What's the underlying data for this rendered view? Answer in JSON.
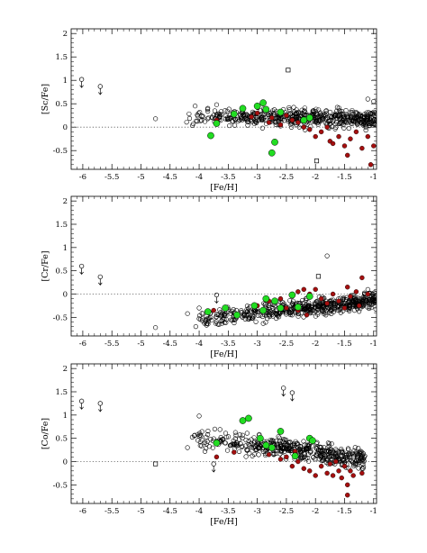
{
  "colors": {
    "open": "#000000",
    "red": "#a50f0f",
    "green": "#22dd22",
    "ref": "#555555"
  },
  "chart_data": [
    {
      "type": "scatter",
      "xlabel": "[Fe/H]",
      "ylabel": "[Sc/Fe]",
      "xlim": [
        -6.2,
        -0.95
      ],
      "ylim": [
        -0.9,
        2.1
      ],
      "xticks": [
        -6,
        -5.5,
        -5,
        -4.5,
        -4,
        -3.5,
        -3,
        -2.5,
        -2,
        -1.5,
        -1
      ],
      "xtick_labels": [
        "-6",
        "-5.5",
        "-5",
        "-4.5",
        "-4",
        "-3.5",
        "-3",
        "-2.5",
        "-2",
        "-1.5",
        "-1"
      ],
      "yticks": [
        -0.5,
        0,
        0.5,
        1,
        1.5,
        2
      ],
      "ytick_labels": [
        "-0.5",
        "0",
        "0.5",
        "1",
        "1.5",
        "2"
      ],
      "reference_line": 0,
      "cloud": {
        "seed": 11,
        "n": 520,
        "xmin": -4.25,
        "xmax": -0.95,
        "y0": 0.22,
        "slope": -0.03,
        "spread": 0.13
      },
      "upper_limits": [
        {
          "x": -6.02,
          "y": 1.02
        },
        {
          "x": -5.7,
          "y": 0.87
        }
      ],
      "squares": [
        {
          "x": -2.47,
          "y": 1.22
        },
        {
          "x": -1.98,
          "y": -0.72
        }
      ],
      "extra_open": [
        {
          "x": -4.75,
          "y": 0.18
        },
        {
          "x": -4.1,
          "y": 0.07
        },
        {
          "x": -3.9,
          "y": 0.12
        },
        {
          "x": -1.0,
          "y": 0.55
        },
        {
          "x": -1.1,
          "y": 0.6
        }
      ],
      "red_points": [
        {
          "x": -3.7,
          "y": 0.15
        },
        {
          "x": -3.1,
          "y": 0.22
        },
        {
          "x": -3.0,
          "y": 0.3
        },
        {
          "x": -2.8,
          "y": 0.1
        },
        {
          "x": -2.75,
          "y": 0.2
        },
        {
          "x": -2.6,
          "y": 0.05
        },
        {
          "x": -2.5,
          "y": 0.25
        },
        {
          "x": -2.4,
          "y": 0.15
        },
        {
          "x": -2.3,
          "y": 0.1
        },
        {
          "x": -2.2,
          "y": 0.0
        },
        {
          "x": -2.1,
          "y": -0.05
        },
        {
          "x": -2.0,
          "y": -0.2
        },
        {
          "x": -1.9,
          "y": -0.1
        },
        {
          "x": -1.8,
          "y": 0.0
        },
        {
          "x": -1.75,
          "y": -0.3
        },
        {
          "x": -1.7,
          "y": -0.35
        },
        {
          "x": -1.6,
          "y": -0.2
        },
        {
          "x": -1.5,
          "y": -0.4
        },
        {
          "x": -1.4,
          "y": -0.25
        },
        {
          "x": -1.3,
          "y": -0.1
        },
        {
          "x": -1.2,
          "y": -0.45
        },
        {
          "x": -1.1,
          "y": -0.2
        },
        {
          "x": -1.0,
          "y": -0.4
        },
        {
          "x": -1.05,
          "y": -0.8
        },
        {
          "x": -1.45,
          "y": -0.6
        }
      ],
      "green_points": [
        {
          "x": -3.8,
          "y": -0.18
        },
        {
          "x": -3.7,
          "y": 0.08
        },
        {
          "x": -3.4,
          "y": 0.28
        },
        {
          "x": -3.25,
          "y": 0.4
        },
        {
          "x": -3.0,
          "y": 0.45
        },
        {
          "x": -2.9,
          "y": 0.52
        },
        {
          "x": -2.7,
          "y": -0.32
        },
        {
          "x": -2.85,
          "y": 0.38
        },
        {
          "x": -2.6,
          "y": 0.32
        },
        {
          "x": -2.2,
          "y": 0.15
        },
        {
          "x": -2.1,
          "y": 0.2
        },
        {
          "x": -2.75,
          "y": -0.55
        }
      ]
    },
    {
      "type": "scatter",
      "xlabel": "[Fe/H]",
      "ylabel": "[Cr/Fe]",
      "xlim": [
        -6.2,
        -0.95
      ],
      "ylim": [
        -0.9,
        2.1
      ],
      "xticks": [
        -6,
        -5.5,
        -5,
        -4.5,
        -4,
        -3.5,
        -3,
        -2.5,
        -2,
        -1.5,
        -1
      ],
      "xtick_labels": [
        "-6",
        "-5.5",
        "-5",
        "-4.5",
        "-4",
        "-3.5",
        "-3",
        "-2.5",
        "-2",
        "-1.5",
        "-1"
      ],
      "yticks": [
        -0.5,
        0,
        0.5,
        1,
        1.5,
        2
      ],
      "ytick_labels": [
        "-0.5",
        "0",
        "0.5",
        "1",
        "1.5",
        "2"
      ],
      "reference_line": 0,
      "cloud": {
        "seed": 23,
        "n": 560,
        "xmin": -4.1,
        "xmax": -0.95,
        "y0": -0.38,
        "slope": 0.14,
        "spread": 0.12
      },
      "upper_limits": [
        {
          "x": -6.02,
          "y": 0.6
        },
        {
          "x": -5.7,
          "y": 0.37
        },
        {
          "x": -3.7,
          "y": -0.02
        }
      ],
      "squares": [
        {
          "x": -1.95,
          "y": 0.38
        }
      ],
      "extra_open": [
        {
          "x": -4.75,
          "y": -0.72
        },
        {
          "x": -4.2,
          "y": -0.42
        },
        {
          "x": -4.0,
          "y": -0.3
        },
        {
          "x": -1.8,
          "y": 0.82
        },
        {
          "x": -1.1,
          "y": 0.1
        }
      ],
      "red_points": [
        {
          "x": -3.75,
          "y": -0.35
        },
        {
          "x": -3.0,
          "y": -0.25
        },
        {
          "x": -2.8,
          "y": -0.15
        },
        {
          "x": -2.6,
          "y": -0.1
        },
        {
          "x": -2.5,
          "y": -0.3
        },
        {
          "x": -2.4,
          "y": -0.05
        },
        {
          "x": -2.3,
          "y": 0.05
        },
        {
          "x": -2.2,
          "y": 0.1
        },
        {
          "x": -2.1,
          "y": 0.0
        },
        {
          "x": -2.0,
          "y": 0.1
        },
        {
          "x": -1.9,
          "y": -0.1
        },
        {
          "x": -1.8,
          "y": -0.2
        },
        {
          "x": -1.7,
          "y": 0.0
        },
        {
          "x": -1.6,
          "y": -0.15
        },
        {
          "x": -1.5,
          "y": -0.3
        },
        {
          "x": -1.45,
          "y": 0.15
        },
        {
          "x": -1.4,
          "y": -0.05
        },
        {
          "x": -1.3,
          "y": 0.05
        },
        {
          "x": -1.25,
          "y": -0.25
        },
        {
          "x": -1.2,
          "y": 0.35
        },
        {
          "x": -1.1,
          "y": 0.0
        },
        {
          "x": -2.15,
          "y": -0.45
        },
        {
          "x": -2.3,
          "y": -0.35
        }
      ],
      "green_points": [
        {
          "x": -3.85,
          "y": -0.38
        },
        {
          "x": -3.55,
          "y": -0.3
        },
        {
          "x": -3.35,
          "y": -0.45
        },
        {
          "x": -3.05,
          "y": -0.25
        },
        {
          "x": -2.9,
          "y": -0.35
        },
        {
          "x": -2.7,
          "y": -0.15
        },
        {
          "x": -2.6,
          "y": -0.3
        },
        {
          "x": -2.4,
          "y": -0.02
        },
        {
          "x": -2.3,
          "y": -0.28
        },
        {
          "x": -2.1,
          "y": -0.05
        },
        {
          "x": -2.85,
          "y": -0.1
        }
      ]
    },
    {
      "type": "scatter",
      "xlabel": "[Fe/H]",
      "ylabel": "[Co/Fe]",
      "xlim": [
        -6.2,
        -0.95
      ],
      "ylim": [
        -0.9,
        2.1
      ],
      "xticks": [
        -6,
        -5.5,
        -5,
        -4.5,
        -4,
        -3.5,
        -3,
        -2.5,
        -2,
        -1.5,
        -1
      ],
      "xtick_labels": [
        "-6",
        "-5.5",
        "-5",
        "-4.5",
        "-4",
        "-3.5",
        "-3",
        "-2.5",
        "-2",
        "-1.5",
        "-1"
      ],
      "yticks": [
        -0.5,
        0,
        0.5,
        1,
        1.5,
        2
      ],
      "ytick_labels": [
        "-0.5",
        "0",
        "0.5",
        "1",
        "1.5",
        "2"
      ],
      "reference_line": 0,
      "cloud": {
        "seed": 37,
        "n": 470,
        "xmin": -4.15,
        "xmax": -1.15,
        "y0": 0.32,
        "slope": -0.16,
        "spread": 0.15
      },
      "upper_limits": [
        {
          "x": -6.02,
          "y": 1.3
        },
        {
          "x": -5.7,
          "y": 1.25
        },
        {
          "x": -2.55,
          "y": 1.58
        },
        {
          "x": -2.4,
          "y": 1.48
        },
        {
          "x": -3.75,
          "y": -0.05
        }
      ],
      "squares": [
        {
          "x": -4.75,
          "y": -0.05
        }
      ],
      "extra_open": [
        {
          "x": -4.0,
          "y": 0.98
        },
        {
          "x": -4.2,
          "y": 0.3
        },
        {
          "x": -3.9,
          "y": 0.22
        },
        {
          "x": -1.3,
          "y": -0.05
        },
        {
          "x": -1.2,
          "y": -0.15
        }
      ],
      "red_points": [
        {
          "x": -3.7,
          "y": 0.1
        },
        {
          "x": -3.4,
          "y": 0.2
        },
        {
          "x": -2.8,
          "y": 0.15
        },
        {
          "x": -2.6,
          "y": 0.05
        },
        {
          "x": -2.5,
          "y": 0.1
        },
        {
          "x": -2.4,
          "y": -0.1
        },
        {
          "x": -2.3,
          "y": 0.0
        },
        {
          "x": -2.2,
          "y": -0.15
        },
        {
          "x": -2.1,
          "y": -0.2
        },
        {
          "x": -2.0,
          "y": -0.3
        },
        {
          "x": -1.9,
          "y": -0.1
        },
        {
          "x": -1.8,
          "y": -0.25
        },
        {
          "x": -1.75,
          "y": -0.05
        },
        {
          "x": -1.7,
          "y": -0.3
        },
        {
          "x": -1.65,
          "y": 0.0
        },
        {
          "x": -1.6,
          "y": -0.2
        },
        {
          "x": -1.55,
          "y": -0.35
        },
        {
          "x": -1.5,
          "y": -0.1
        },
        {
          "x": -1.45,
          "y": -0.5
        },
        {
          "x": -1.4,
          "y": -0.2
        },
        {
          "x": -1.35,
          "y": -0.3
        },
        {
          "x": -1.45,
          "y": -0.72
        },
        {
          "x": -1.2,
          "y": -0.25
        },
        {
          "x": -2.35,
          "y": 0.22
        }
      ],
      "green_points": [
        {
          "x": -3.25,
          "y": 0.88
        },
        {
          "x": -3.15,
          "y": 0.93
        },
        {
          "x": -2.95,
          "y": 0.5
        },
        {
          "x": -2.85,
          "y": 0.35
        },
        {
          "x": -2.75,
          "y": 0.3
        },
        {
          "x": -2.6,
          "y": 0.65
        },
        {
          "x": -2.35,
          "y": 0.12
        },
        {
          "x": -2.1,
          "y": 0.5
        },
        {
          "x": -2.05,
          "y": 0.45
        },
        {
          "x": -3.7,
          "y": 0.4
        }
      ]
    }
  ]
}
